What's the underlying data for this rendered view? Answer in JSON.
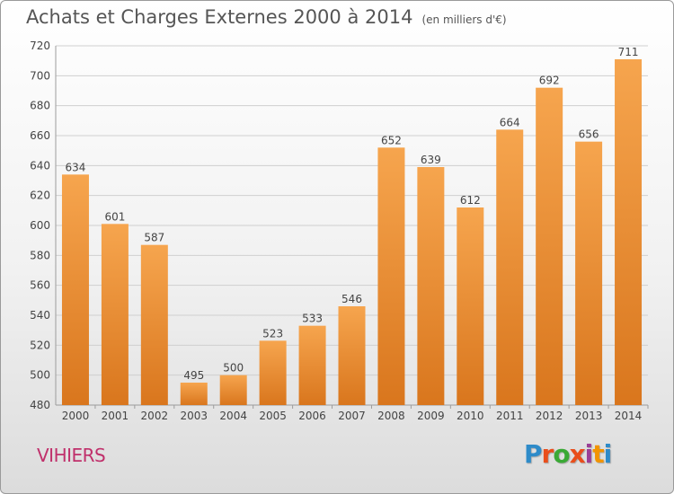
{
  "header": {
    "title": "Achats et Charges Externes 2000 à 2014",
    "unit": "(en milliers d'€)"
  },
  "footer": {
    "commune": "VIHIERS",
    "logo": {
      "text": "Proxiti",
      "letter_colors": [
        "#2e8bc9",
        "#e94e1b",
        "#3aa935",
        "#e94e1b",
        "#9a3f97",
        "#f29400",
        "#2e8bc9"
      ]
    }
  },
  "colors": {
    "bar_light": "#f6a54e",
    "bar_dark": "#d9761d",
    "grid": "#cfcfcf",
    "text": "#444444"
  },
  "chart_data": {
    "type": "bar",
    "title": "Achats et Charges Externes 2000 à 2014",
    "subtitle": "(en milliers d'€)",
    "categories": [
      "2000",
      "2001",
      "2002",
      "2003",
      "2004",
      "2005",
      "2006",
      "2007",
      "2008",
      "2009",
      "2010",
      "2011",
      "2012",
      "2013",
      "2014"
    ],
    "values": [
      634,
      601,
      587,
      495,
      500,
      523,
      533,
      546,
      652,
      639,
      612,
      664,
      692,
      656,
      711
    ],
    "data_labels": [
      "634",
      "601",
      "587",
      "495",
      "500",
      "523",
      "533",
      "546",
      "652",
      "639",
      "612",
      "664",
      "692",
      "656",
      "711"
    ],
    "ylim": [
      480,
      720
    ],
    "yticks": [
      480,
      500,
      520,
      540,
      560,
      580,
      600,
      620,
      640,
      660,
      680,
      700,
      720
    ],
    "grid": true,
    "legend": "none"
  }
}
